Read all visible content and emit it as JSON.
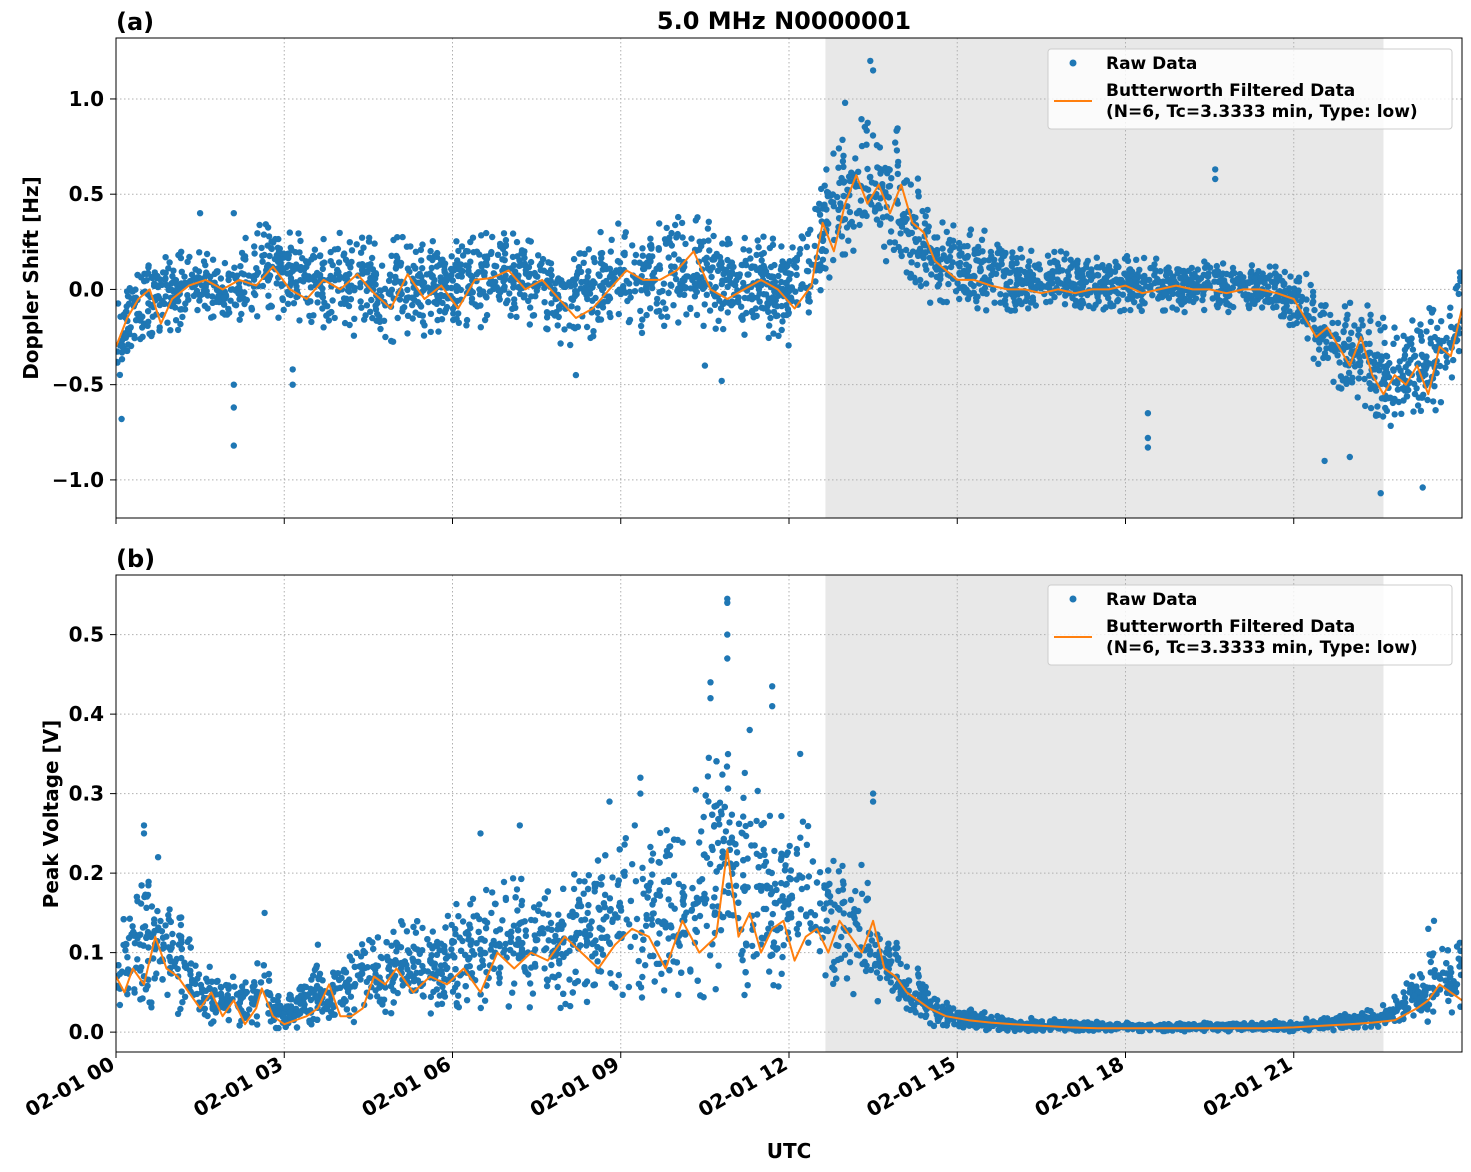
{
  "figure": {
    "title": "5.0 MHz N0000001",
    "xlabel": "UTC",
    "x_tick_labels": [
      "02-01 00",
      "02-01 03",
      "02-01 06",
      "02-01 09",
      "02-01 12",
      "02-01 15",
      "02-01 18",
      "02-01 21"
    ],
    "colors": {
      "raw": "#1f77b4",
      "filtered": "#ff7f0e",
      "shade": "#e8e8e8",
      "grid": "#b0b0b0"
    },
    "legend": {
      "raw_label": "Raw Data",
      "filtered_label_line1": "Butterworth Filtered Data",
      "filtered_label_line2": "(N=6, Tc=3.3333 min, Type: low)",
      "placement": "top-right"
    }
  },
  "chart_data": [
    {
      "type": "scatter",
      "panel_label": "(a)",
      "ylabel": "Doppler Shift [Hz]",
      "xlim_hours": [
        0,
        24
      ],
      "ylim": [
        -1.2,
        1.32
      ],
      "y_ticks": [
        -1.0,
        -0.5,
        0.0,
        0.5,
        1.0
      ],
      "y_tick_labels": [
        "−1.0",
        "−0.5",
        "0.0",
        "0.5",
        "1.0"
      ],
      "shaded_interval_hours": [
        12.65,
        22.6
      ],
      "grid": true,
      "series": [
        {
          "name": "Butterworth Filtered Data",
          "style": "line",
          "x_hours": [
            0.0,
            0.2,
            0.4,
            0.6,
            0.8,
            1.0,
            1.3,
            1.6,
            1.9,
            2.2,
            2.5,
            2.8,
            3.1,
            3.4,
            3.7,
            4.0,
            4.3,
            4.6,
            4.9,
            5.2,
            5.5,
            5.8,
            6.1,
            6.4,
            6.7,
            7.0,
            7.3,
            7.6,
            7.9,
            8.2,
            8.5,
            8.8,
            9.1,
            9.4,
            9.7,
            10.0,
            10.3,
            10.6,
            10.9,
            11.2,
            11.5,
            11.8,
            12.1,
            12.4,
            12.6,
            12.8,
            13.0,
            13.2,
            13.4,
            13.6,
            13.8,
            14.0,
            14.2,
            14.4,
            14.6,
            14.8,
            15.0,
            15.3,
            15.6,
            15.9,
            16.2,
            16.5,
            16.8,
            17.1,
            17.4,
            17.7,
            18.0,
            18.3,
            18.6,
            18.9,
            19.2,
            19.5,
            19.8,
            20.1,
            20.4,
            20.7,
            21.0,
            21.2,
            21.4,
            21.6,
            21.8,
            22.0,
            22.2,
            22.4,
            22.6,
            22.8,
            23.0,
            23.2,
            23.4,
            23.6,
            23.8,
            24.0
          ],
          "y": [
            -0.3,
            -0.15,
            -0.05,
            0.0,
            -0.18,
            -0.05,
            0.02,
            0.05,
            0.0,
            0.05,
            0.02,
            0.12,
            0.0,
            -0.05,
            0.05,
            0.0,
            0.08,
            -0.02,
            -0.1,
            0.08,
            -0.05,
            0.02,
            -0.1,
            0.05,
            0.06,
            0.1,
            0.0,
            0.05,
            -0.05,
            -0.15,
            -0.1,
            0.0,
            0.1,
            0.05,
            0.05,
            0.1,
            0.2,
            0.0,
            -0.05,
            0.0,
            0.05,
            0.0,
            -0.1,
            0.02,
            0.35,
            0.2,
            0.45,
            0.6,
            0.45,
            0.55,
            0.4,
            0.55,
            0.35,
            0.3,
            0.15,
            0.1,
            0.05,
            0.05,
            0.02,
            0.0,
            0.0,
            -0.02,
            0.0,
            -0.02,
            0.0,
            0.0,
            0.02,
            -0.02,
            0.0,
            0.02,
            0.0,
            0.0,
            -0.02,
            0.0,
            0.0,
            -0.02,
            -0.05,
            -0.15,
            -0.25,
            -0.2,
            -0.3,
            -0.4,
            -0.25,
            -0.45,
            -0.55,
            -0.45,
            -0.5,
            -0.4,
            -0.55,
            -0.3,
            -0.35,
            -0.1
          ]
        },
        {
          "name": "Raw Data",
          "style": "points",
          "envelope": {
            "x_hours": [
              0.0,
              0.3,
              0.6,
              1.0,
              1.5,
              2.0,
              2.5,
              3.0,
              3.5,
              4.0,
              4.5,
              5.0,
              5.5,
              6.0,
              6.5,
              7.0,
              7.5,
              8.0,
              8.5,
              9.0,
              9.5,
              10.0,
              10.5,
              11.0,
              11.5,
              12.0,
              12.4,
              12.7,
              13.0,
              13.3,
              13.6,
              13.9,
              14.2,
              14.5,
              14.8,
              15.2,
              15.6,
              16.0,
              16.5,
              17.0,
              17.5,
              18.0,
              18.5,
              19.0,
              19.5,
              20.0,
              20.5,
              21.0,
              21.3,
              21.6,
              21.9,
              22.2,
              22.5,
              22.8,
              23.1,
              23.4,
              23.7,
              24.0
            ],
            "low": [
              -0.55,
              -0.35,
              -0.25,
              -0.25,
              -0.12,
              -0.2,
              -0.15,
              -0.15,
              -0.2,
              -0.25,
              -0.25,
              -0.3,
              -0.25,
              -0.2,
              -0.2,
              -0.15,
              -0.2,
              -0.3,
              -0.3,
              -0.2,
              -0.25,
              -0.2,
              -0.2,
              -0.25,
              -0.25,
              -0.3,
              -0.2,
              0.05,
              0.15,
              0.2,
              0.15,
              0.1,
              -0.05,
              -0.1,
              -0.12,
              -0.12,
              -0.12,
              -0.12,
              -0.1,
              -0.1,
              -0.12,
              -0.12,
              -0.12,
              -0.12,
              -0.12,
              -0.12,
              -0.12,
              -0.2,
              -0.35,
              -0.45,
              -0.55,
              -0.65,
              -0.7,
              -0.75,
              -0.75,
              -0.7,
              -0.6,
              -0.35
            ],
            "high": [
              0.0,
              0.1,
              0.15,
              0.2,
              0.2,
              0.15,
              0.35,
              0.35,
              0.25,
              0.3,
              0.35,
              0.3,
              0.3,
              0.25,
              0.3,
              0.3,
              0.3,
              0.2,
              0.3,
              0.35,
              0.35,
              0.4,
              0.4,
              0.3,
              0.3,
              0.25,
              0.4,
              0.75,
              0.85,
              0.9,
              0.85,
              0.9,
              0.65,
              0.45,
              0.4,
              0.35,
              0.3,
              0.25,
              0.2,
              0.2,
              0.18,
              0.18,
              0.18,
              0.15,
              0.15,
              0.15,
              0.15,
              0.12,
              0.08,
              0.0,
              -0.05,
              -0.05,
              -0.1,
              -0.15,
              -0.15,
              -0.1,
              -0.05,
              0.15
            ]
          },
          "outliers": [
            [
              2.1,
              0.4
            ],
            [
              2.1,
              -0.5
            ],
            [
              2.1,
              -0.62
            ],
            [
              2.1,
              -0.82
            ],
            [
              1.5,
              0.4
            ],
            [
              13.45,
              1.2
            ],
            [
              13.5,
              1.15
            ],
            [
              13.0,
              0.98
            ],
            [
              19.6,
              0.63
            ],
            [
              19.6,
              0.58
            ],
            [
              18.4,
              -0.65
            ],
            [
              18.4,
              -0.78
            ],
            [
              18.4,
              -0.83
            ],
            [
              22.55,
              -1.07
            ],
            [
              23.3,
              -1.04
            ],
            [
              3.15,
              -0.42
            ],
            [
              3.15,
              -0.5
            ],
            [
              10.5,
              -0.4
            ],
            [
              10.8,
              -0.48
            ],
            [
              8.2,
              -0.45
            ],
            [
              0.1,
              -0.68
            ],
            [
              21.55,
              -0.9
            ],
            [
              22.0,
              -0.88
            ]
          ]
        }
      ]
    },
    {
      "type": "scatter",
      "panel_label": "(b)",
      "ylabel": "Peak Voltage [V]",
      "xlim_hours": [
        0,
        24
      ],
      "ylim": [
        -0.025,
        0.575
      ],
      "y_ticks": [
        0.0,
        0.1,
        0.2,
        0.3,
        0.4,
        0.5
      ],
      "y_tick_labels": [
        "0.0",
        "0.1",
        "0.2",
        "0.3",
        "0.4",
        "0.5"
      ],
      "shaded_interval_hours": [
        12.65,
        22.6
      ],
      "grid": true,
      "series": [
        {
          "name": "Butterworth Filtered Data",
          "style": "line",
          "x_hours": [
            0.0,
            0.15,
            0.3,
            0.5,
            0.7,
            0.9,
            1.1,
            1.3,
            1.5,
            1.7,
            1.9,
            2.1,
            2.3,
            2.5,
            2.6,
            2.8,
            3.0,
            3.2,
            3.4,
            3.6,
            3.8,
            4.0,
            4.2,
            4.4,
            4.6,
            4.8,
            5.0,
            5.3,
            5.6,
            5.9,
            6.2,
            6.5,
            6.8,
            7.1,
            7.4,
            7.7,
            8.0,
            8.3,
            8.6,
            8.9,
            9.2,
            9.5,
            9.8,
            10.1,
            10.4,
            10.7,
            10.9,
            11.1,
            11.3,
            11.5,
            11.7,
            11.9,
            12.1,
            12.3,
            12.5,
            12.7,
            12.9,
            13.1,
            13.3,
            13.5,
            13.7,
            13.9,
            14.1,
            14.3,
            14.5,
            14.8,
            15.2,
            15.6,
            16.0,
            16.5,
            17.0,
            17.5,
            18.0,
            18.5,
            19.0,
            19.5,
            20.0,
            20.5,
            21.0,
            21.5,
            22.0,
            22.4,
            22.8,
            23.2,
            23.4,
            23.6,
            23.8,
            24.0
          ],
          "y": [
            0.07,
            0.05,
            0.08,
            0.06,
            0.12,
            0.08,
            0.07,
            0.05,
            0.03,
            0.05,
            0.02,
            0.04,
            0.01,
            0.03,
            0.055,
            0.02,
            0.01,
            0.015,
            0.02,
            0.03,
            0.06,
            0.02,
            0.02,
            0.03,
            0.07,
            0.06,
            0.08,
            0.05,
            0.07,
            0.06,
            0.08,
            0.05,
            0.1,
            0.08,
            0.1,
            0.09,
            0.12,
            0.1,
            0.08,
            0.11,
            0.13,
            0.12,
            0.08,
            0.14,
            0.1,
            0.12,
            0.23,
            0.12,
            0.15,
            0.1,
            0.13,
            0.14,
            0.09,
            0.12,
            0.13,
            0.1,
            0.14,
            0.12,
            0.1,
            0.14,
            0.08,
            0.07,
            0.05,
            0.04,
            0.03,
            0.02,
            0.015,
            0.012,
            0.01,
            0.008,
            0.006,
            0.005,
            0.005,
            0.005,
            0.005,
            0.005,
            0.005,
            0.005,
            0.006,
            0.008,
            0.01,
            0.012,
            0.015,
            0.03,
            0.04,
            0.06,
            0.05,
            0.04
          ]
        },
        {
          "name": "Raw Data",
          "style": "points",
          "envelope": {
            "x_hours": [
              0.0,
              0.3,
              0.6,
              0.9,
              1.2,
              1.5,
              1.8,
              2.1,
              2.4,
              2.6,
              2.8,
              3.0,
              3.3,
              3.6,
              3.9,
              4.2,
              4.5,
              4.8,
              5.1,
              5.4,
              5.7,
              6.0,
              6.3,
              6.6,
              6.9,
              7.2,
              7.5,
              7.8,
              8.1,
              8.4,
              8.7,
              9.0,
              9.3,
              9.6,
              9.9,
              10.2,
              10.5,
              10.8,
              11.1,
              11.4,
              11.7,
              12.0,
              12.3,
              12.6,
              12.9,
              13.2,
              13.5,
              13.8,
              14.1,
              14.4,
              14.7,
              15.0,
              15.5,
              16.0,
              17.0,
              18.0,
              19.0,
              20.0,
              21.0,
              22.0,
              22.5,
              23.0,
              23.3,
              23.6,
              24.0
            ],
            "low": [
              0.02,
              0.02,
              0.03,
              0.02,
              0.02,
              0.01,
              0.01,
              0.01,
              0.005,
              0.01,
              0.005,
              0.005,
              0.005,
              0.005,
              0.01,
              0.01,
              0.02,
              0.02,
              0.02,
              0.02,
              0.02,
              0.02,
              0.03,
              0.03,
              0.03,
              0.03,
              0.03,
              0.03,
              0.03,
              0.03,
              0.04,
              0.04,
              0.04,
              0.04,
              0.04,
              0.03,
              0.04,
              0.05,
              0.04,
              0.04,
              0.04,
              0.04,
              0.05,
              0.04,
              0.04,
              0.04,
              0.04,
              0.03,
              0.02,
              0.01,
              0.005,
              0.003,
              0.002,
              0.001,
              0.001,
              0.001,
              0.001,
              0.001,
              0.001,
              0.003,
              0.005,
              0.01,
              0.01,
              0.015,
              0.02
            ],
            "high": [
              0.15,
              0.17,
              0.2,
              0.18,
              0.14,
              0.1,
              0.08,
              0.07,
              0.06,
              0.12,
              0.05,
              0.04,
              0.07,
              0.09,
              0.08,
              0.11,
              0.13,
              0.13,
              0.14,
              0.15,
              0.13,
              0.16,
              0.17,
              0.18,
              0.19,
              0.2,
              0.19,
              0.18,
              0.2,
              0.22,
              0.24,
              0.27,
              0.25,
              0.27,
              0.28,
              0.3,
              0.35,
              0.4,
              0.35,
              0.33,
              0.3,
              0.28,
              0.3,
              0.26,
              0.22,
              0.23,
              0.17,
              0.13,
              0.1,
              0.07,
              0.05,
              0.035,
              0.025,
              0.02,
              0.015,
              0.012,
              0.012,
              0.012,
              0.015,
              0.025,
              0.03,
              0.06,
              0.09,
              0.11,
              0.12
            ]
          },
          "outliers": [
            [
              10.9,
              0.545
            ],
            [
              10.9,
              0.54
            ],
            [
              10.9,
              0.5
            ],
            [
              10.9,
              0.47
            ],
            [
              10.6,
              0.44
            ],
            [
              10.6,
              0.42
            ],
            [
              11.7,
              0.435
            ],
            [
              11.7,
              0.41
            ],
            [
              0.5,
              0.26
            ],
            [
              0.5,
              0.25
            ],
            [
              0.75,
              0.22
            ],
            [
              9.35,
              0.32
            ],
            [
              9.35,
              0.3
            ],
            [
              9.25,
              0.26
            ],
            [
              13.5,
              0.3
            ],
            [
              13.5,
              0.29
            ],
            [
              8.8,
              0.29
            ],
            [
              7.2,
              0.26
            ],
            [
              3.6,
              0.11
            ],
            [
              2.65,
              0.15
            ],
            [
              23.5,
              0.14
            ],
            [
              23.4,
              0.13
            ],
            [
              12.2,
              0.35
            ],
            [
              11.3,
              0.38
            ],
            [
              6.5,
              0.25
            ]
          ]
        }
      ]
    }
  ]
}
